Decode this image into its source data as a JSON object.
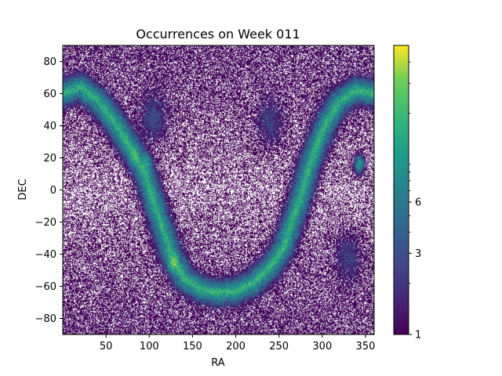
{
  "chart_data": {
    "type": "heatmap",
    "title": "Occurrences on Week 011",
    "xlabel": "RA",
    "ylabel": "DEC",
    "xlim": [
      0,
      360
    ],
    "ylim": [
      -90,
      90
    ],
    "x_ticks": [
      50,
      100,
      150,
      200,
      250,
      300,
      350
    ],
    "y_ticks": [
      -80,
      -60,
      -40,
      -20,
      0,
      20,
      40,
      60,
      80
    ],
    "colorbar": {
      "scale": "log",
      "colormap": "viridis",
      "range": [
        1,
        50
      ],
      "tick_labels": [
        {
          "value": 1,
          "label": "1"
        },
        {
          "value": 3,
          "label": "3"
        },
        {
          "value": 6,
          "label": "6"
        }
      ],
      "minor_ticks": [
        2,
        4,
        5,
        7,
        8,
        9,
        10,
        20,
        30,
        40
      ]
    },
    "features": [
      {
        "name": "galactic-plane band",
        "path_radec": [
          [
            0,
            60
          ],
          [
            20,
            64
          ],
          [
            40,
            56
          ],
          [
            60,
            42
          ],
          [
            80,
            25
          ],
          [
            95,
            10
          ],
          [
            110,
            -15
          ],
          [
            125,
            -40
          ],
          [
            140,
            -55
          ],
          [
            160,
            -62
          ],
          [
            180,
            -64
          ],
          [
            200,
            -63
          ],
          [
            220,
            -58
          ],
          [
            240,
            -48
          ],
          [
            255,
            -36
          ],
          [
            265,
            -20
          ],
          [
            275,
            -5
          ],
          [
            285,
            15
          ],
          [
            295,
            30
          ],
          [
            305,
            42
          ],
          [
            320,
            55
          ],
          [
            340,
            62
          ],
          [
            360,
            60
          ]
        ],
        "peak_count": 20
      },
      {
        "name": "hotspot",
        "ra": 128,
        "dec": -45,
        "count": 15
      },
      {
        "name": "hotspot",
        "ra": 83,
        "dec": 22,
        "count": 8
      },
      {
        "name": "hotspot",
        "ra": 97,
        "dec": 17,
        "count": 8
      },
      {
        "name": "hotspot",
        "ra": 343,
        "dec": 16,
        "count": 10
      },
      {
        "name": "diffuse blob",
        "ra": 105,
        "dec": 45,
        "count": 5
      },
      {
        "name": "diffuse blob",
        "ra": 240,
        "dec": 42,
        "count": 4
      },
      {
        "name": "diffuse blob",
        "ra": 330,
        "dec": -42,
        "count": 4
      }
    ],
    "background_level": 1,
    "grid": false,
    "colors": {
      "low": "#440154",
      "high": "#fde725",
      "empty": "#ffffff"
    }
  }
}
